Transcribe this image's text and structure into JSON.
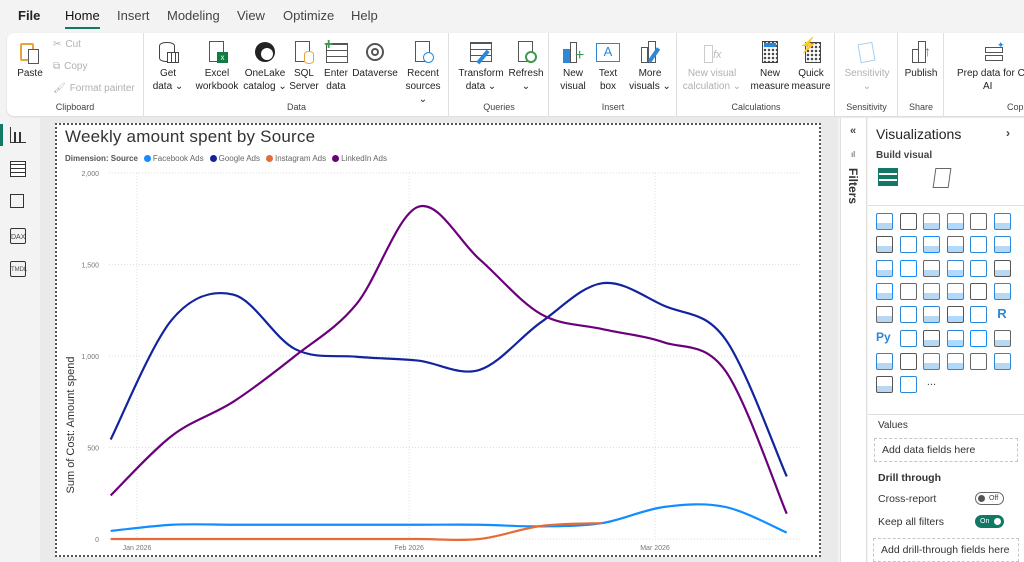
{
  "menu": {
    "items": [
      "File",
      "Home",
      "Insert",
      "Modeling",
      "View",
      "Optimize",
      "Help"
    ],
    "active": "Home"
  },
  "ribbon": {
    "clipboard": {
      "label": "Clipboard",
      "paste": "Paste",
      "cut": "Cut",
      "copy": "Copy",
      "format_painter": "Format painter"
    },
    "data": {
      "label": "Data",
      "get_data": [
        "Get",
        "data ⌄"
      ],
      "excel": [
        "Excel",
        "workbook"
      ],
      "onelake": [
        "OneLake",
        "catalog ⌄"
      ],
      "sql": [
        "SQL",
        "Server"
      ],
      "enter": [
        "Enter",
        "data"
      ],
      "dataverse": [
        "Dataverse",
        ""
      ],
      "recent": [
        "Recent",
        "sources ⌄"
      ]
    },
    "queries": {
      "label": "Queries",
      "transform": [
        "Transform",
        "data ⌄"
      ],
      "refresh": [
        "Refresh",
        "⌄"
      ]
    },
    "insert": {
      "label": "Insert",
      "new_visual": [
        "New",
        "visual"
      ],
      "text_box": [
        "Text",
        "box"
      ],
      "more_visuals": [
        "More",
        "visuals ⌄"
      ]
    },
    "calculations": {
      "label": "Calculations",
      "new_visual_calc": [
        "New visual",
        "calculation ⌄"
      ],
      "new_measure": [
        "New",
        "measure"
      ],
      "quick_measure": [
        "Quick",
        "measure"
      ]
    },
    "sensitivity": {
      "label": "Sensitivity",
      "button": [
        "Sensitivity",
        "⌄"
      ]
    },
    "share": {
      "label": "Share",
      "publish": [
        "Publish",
        ""
      ]
    },
    "copilot": {
      "label": "Copilot",
      "prep": [
        "Prep data for C",
        "AI"
      ]
    }
  },
  "left_rail": {
    "items": [
      "report-view",
      "table-view",
      "model-view",
      "DAX",
      "TMDL"
    ]
  },
  "filters_pane": {
    "label": "Filters"
  },
  "visualizations": {
    "title": "Visualizations",
    "build_visual": "Build visual",
    "icons": [
      "stacked-bar",
      "stacked-column",
      "clustered-bar",
      "clustered-column",
      "100-bar",
      "100-column",
      "line",
      "area",
      "stacked-area",
      "100-area",
      "line-column",
      "line-clustered-column",
      "ribbon",
      "waterfall",
      "funnel",
      "scatter",
      "pie",
      "donut",
      "treemap",
      "map",
      "filled-map",
      "shape-map",
      "azure-map",
      "gauge",
      "card",
      "kpi",
      "slicer",
      "table",
      "matrix",
      "r-visual",
      "python-visual",
      "key-influencers",
      "decomposition-tree",
      "qa",
      "narrative",
      "goals",
      "paginated",
      "power-apps",
      "power-automate",
      "button-slicer",
      "image",
      "custom",
      "copilot",
      "arrow",
      "more"
    ],
    "more_label": "...",
    "values_label": "Values",
    "values_placeholder": "Add data fields here",
    "drill_through": "Drill through",
    "cross_report": "Cross-report",
    "cross_report_state": "Off",
    "keep_filters": "Keep all filters",
    "keep_filters_state": "On",
    "drill_placeholder": "Add drill-through fields here"
  },
  "chart_data": {
    "type": "line",
    "title": "Weekly amount spent by Source",
    "legend_title": "Dimension: Source",
    "ylabel": "Sum of Cost: Amount spend",
    "xlabel": "",
    "ylim": [
      0,
      2000
    ],
    "yticks": [
      "0",
      "500",
      "1,000",
      "1,500",
      "2,000"
    ],
    "xticks": [
      "Jan 2026",
      "Feb 2026",
      "Mar 2026"
    ],
    "grid": true,
    "legend": "top-left",
    "x": [
      "2025-12-29",
      "2026-01-05",
      "2026-01-12",
      "2026-01-19",
      "2026-01-26",
      "2026-02-02",
      "2026-02-09",
      "2026-02-16",
      "2026-02-23",
      "2026-03-02",
      "2026-03-09",
      "2026-03-16"
    ],
    "series": [
      {
        "name": "Facebook Ads",
        "color": "#118DFF",
        "values": [
          44,
          78,
          78,
          78,
          78,
          78,
          78,
          69,
          87,
          175,
          175,
          35
        ]
      },
      {
        "name": "Google Ads",
        "color": "#12239E",
        "values": [
          544,
          1200,
          1335,
          1038,
          996,
          975,
          924,
          1184,
          1398,
          1275,
          1093,
          342
        ]
      },
      {
        "name": "Instagram Ads",
        "color": "#E66C37",
        "values": [
          0,
          0,
          0,
          0,
          0,
          0,
          0,
          71,
          87,
          null,
          null,
          null
        ]
      },
      {
        "name": "LinkedIn Ads",
        "color": "#6B007B",
        "values": [
          238,
          565,
          751,
          1000,
          1284,
          1815,
          1529,
          1229,
          1147,
          1075,
          920,
          138
        ]
      }
    ]
  }
}
